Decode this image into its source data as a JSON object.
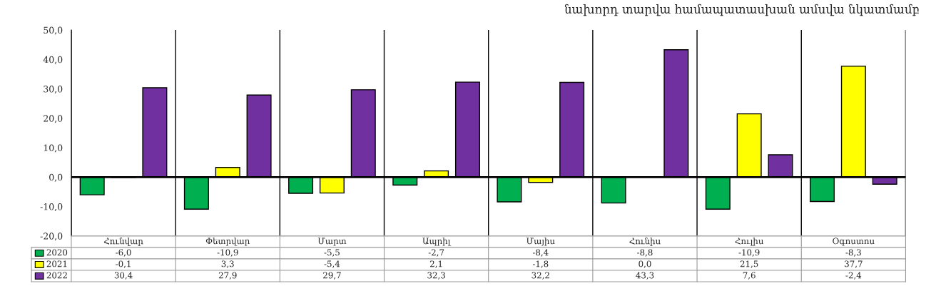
{
  "chart_data": {
    "type": "bar",
    "title": "նախորդ տարվա համապատասխան ամսվա նկատմամբ",
    "categories": [
      "Հունվար",
      "Փետրվար",
      "Մարտ",
      "Ապրիլ",
      "Մայիս",
      "Հունիս",
      "Հուլիս",
      "Օգոստոս"
    ],
    "series": [
      {
        "name": "2020",
        "color": "#00b050",
        "values": [
          -6.0,
          -10.9,
          -5.5,
          -2.7,
          -8.4,
          -8.8,
          -10.9,
          -8.3
        ],
        "value_labels": [
          "-6,0",
          "-10,9",
          "-5,5",
          "-2,7",
          "-8,4",
          "-8,8",
          "-10,9",
          "-8,3"
        ]
      },
      {
        "name": "2021",
        "color": "#ffff00",
        "values": [
          -0.1,
          3.3,
          -5.4,
          2.1,
          -1.8,
          0.0,
          21.5,
          37.7
        ],
        "value_labels": [
          "-0,1",
          "3,3",
          "-5,4",
          "2,1",
          "-1,8",
          "0,0",
          "21,5",
          "37,7"
        ]
      },
      {
        "name": "2022",
        "color": "#7030a0",
        "values": [
          30.4,
          27.9,
          29.7,
          32.3,
          32.2,
          43.3,
          7.6,
          -2.4
        ],
        "value_labels": [
          "30,4",
          "27,9",
          "29,7",
          "32,3",
          "32,2",
          "43,3",
          "7,6",
          "-2,4"
        ]
      }
    ],
    "ylim": [
      -20,
      50
    ],
    "yticks": [
      {
        "value": -20,
        "label": "-20,0"
      },
      {
        "value": -10,
        "label": "-10,0"
      },
      {
        "value": 0,
        "label": "0,0"
      },
      {
        "value": 10,
        "label": "10,0"
      },
      {
        "value": 20,
        "label": "20,0"
      },
      {
        "value": 30,
        "label": "30,0"
      },
      {
        "value": 40,
        "label": "40,0"
      },
      {
        "value": 50,
        "label": "50,0"
      }
    ],
    "ref_lines": [
      {
        "axis": "y",
        "value": 0,
        "color": "#000000"
      }
    ],
    "grid": "x",
    "legend": "bottom"
  }
}
